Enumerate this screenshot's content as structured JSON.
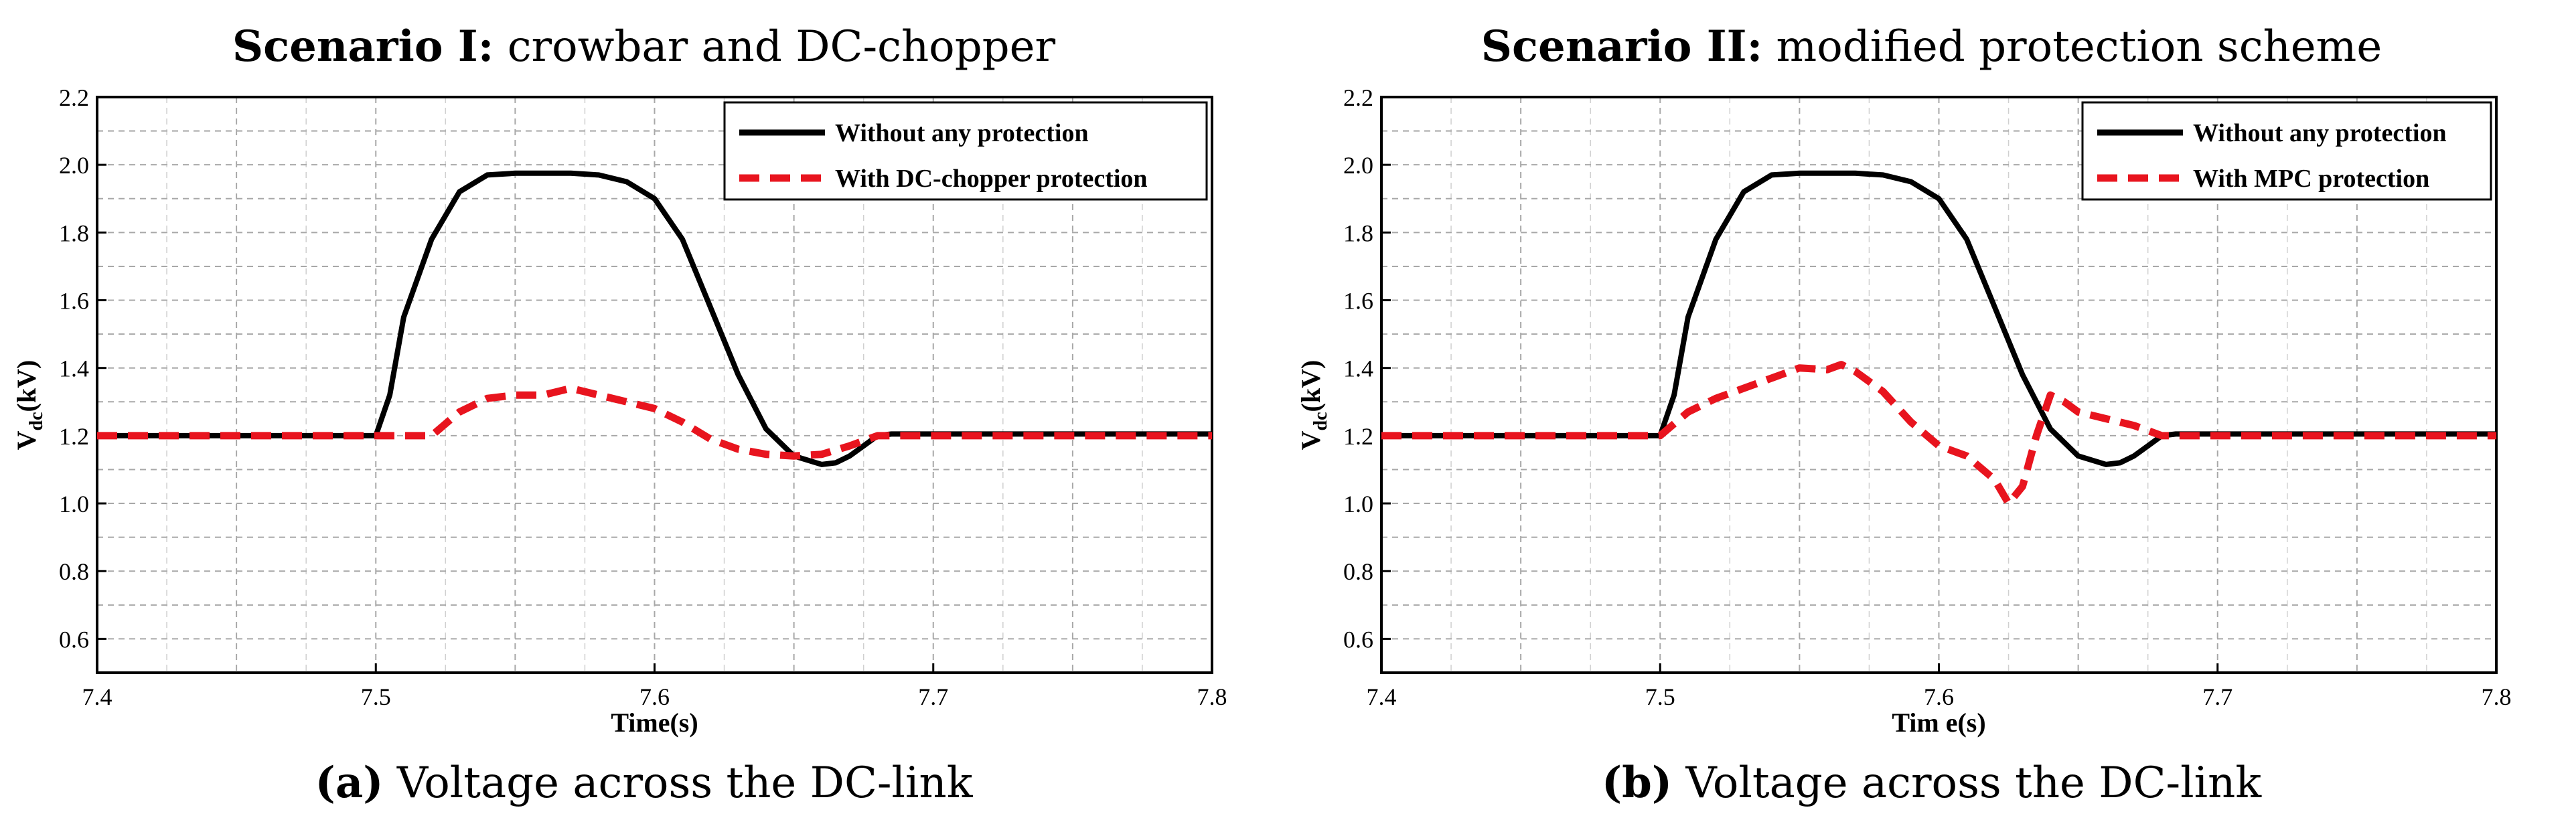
{
  "chart_data": [
    {
      "type": "line",
      "panel_title_bold": "Scenario I:",
      "panel_title_rest": " crowbar and DC-chopper",
      "caption_bold": "(a)",
      "caption_rest": " Voltage across the DC-link",
      "xlabel": "Time(s)",
      "ylabel": "V",
      "ylabel_sub": "dc",
      "ylabel_unit": "(kV)",
      "xlim": [
        7.4,
        7.8
      ],
      "ylim": [
        0.5,
        2.2
      ],
      "x_ticks": [
        7.4,
        7.5,
        7.6,
        7.7,
        7.8
      ],
      "x_tick_labels": [
        "7.4",
        "7.5",
        "7.6",
        "7.7",
        "7.8"
      ],
      "y_ticks": [
        0.6,
        0.8,
        1.0,
        1.2,
        1.4,
        1.6,
        1.8,
        2.0,
        2.2
      ],
      "y_tick_labels": [
        "0.6",
        "0.8",
        "1.0",
        "1.2",
        "1.4",
        "1.6",
        "1.8",
        "2.0",
        "2.2"
      ],
      "grid": true,
      "legend_position": "top-right",
      "series": [
        {
          "name": "Without any protection",
          "color": "#000000",
          "style": "solid",
          "x": [
            7.4,
            7.5,
            7.505,
            7.51,
            7.52,
            7.53,
            7.54,
            7.55,
            7.56,
            7.57,
            7.58,
            7.59,
            7.6,
            7.61,
            7.62,
            7.63,
            7.64,
            7.65,
            7.66,
            7.665,
            7.67,
            7.675,
            7.68,
            7.685,
            7.8
          ],
          "y": [
            1.2,
            1.2,
            1.32,
            1.55,
            1.78,
            1.92,
            1.97,
            1.975,
            1.975,
            1.975,
            1.97,
            1.95,
            1.9,
            1.78,
            1.58,
            1.38,
            1.22,
            1.14,
            1.115,
            1.12,
            1.14,
            1.17,
            1.2,
            1.205,
            1.205
          ]
        },
        {
          "name": "With DC-chopper protection",
          "color": "#e8141e",
          "style": "dashed",
          "x": [
            7.4,
            7.5,
            7.52,
            7.53,
            7.54,
            7.55,
            7.56,
            7.57,
            7.58,
            7.59,
            7.6,
            7.61,
            7.62,
            7.63,
            7.64,
            7.65,
            7.66,
            7.67,
            7.68,
            7.8
          ],
          "y": [
            1.2,
            1.2,
            1.2,
            1.27,
            1.31,
            1.32,
            1.32,
            1.34,
            1.32,
            1.3,
            1.28,
            1.24,
            1.19,
            1.16,
            1.145,
            1.14,
            1.145,
            1.17,
            1.2,
            1.2
          ]
        }
      ]
    },
    {
      "type": "line",
      "panel_title_bold": "Scenario II:",
      "panel_title_rest": " modified protection scheme",
      "caption_bold": "(b)",
      "caption_rest": " Voltage across the DC-link",
      "xlabel": "Tim e(s)",
      "ylabel": "V",
      "ylabel_sub": "dc",
      "ylabel_unit": "(kV)",
      "xlim": [
        7.4,
        7.8
      ],
      "ylim": [
        0.5,
        2.2
      ],
      "x_ticks": [
        7.4,
        7.5,
        7.6,
        7.7,
        7.8
      ],
      "x_tick_labels": [
        "7.4",
        "7.5",
        "7.6",
        "7.7",
        "7.8"
      ],
      "y_ticks": [
        0.6,
        0.8,
        1.0,
        1.2,
        1.4,
        1.6,
        1.8,
        2.0,
        2.2
      ],
      "y_tick_labels": [
        "0.6",
        "0.8",
        "1.0",
        "1.2",
        "1.4",
        "1.6",
        "1.8",
        "2.0",
        "2.2"
      ],
      "grid": true,
      "legend_position": "top-right",
      "series": [
        {
          "name": "Without any protection",
          "color": "#000000",
          "style": "solid",
          "x": [
            7.4,
            7.5,
            7.505,
            7.51,
            7.52,
            7.53,
            7.54,
            7.55,
            7.56,
            7.57,
            7.58,
            7.59,
            7.6,
            7.61,
            7.62,
            7.63,
            7.64,
            7.65,
            7.66,
            7.665,
            7.67,
            7.675,
            7.68,
            7.685,
            7.8
          ],
          "y": [
            1.2,
            1.2,
            1.32,
            1.55,
            1.78,
            1.92,
            1.97,
            1.975,
            1.975,
            1.975,
            1.97,
            1.95,
            1.9,
            1.78,
            1.58,
            1.38,
            1.22,
            1.14,
            1.115,
            1.12,
            1.14,
            1.17,
            1.2,
            1.205,
            1.205
          ]
        },
        {
          "name": "With MPC protection",
          "color": "#e8141e",
          "style": "dashed",
          "x": [
            7.4,
            7.5,
            7.51,
            7.52,
            7.53,
            7.54,
            7.55,
            7.56,
            7.565,
            7.57,
            7.58,
            7.59,
            7.6,
            7.61,
            7.62,
            7.625,
            7.63,
            7.635,
            7.64,
            7.645,
            7.65,
            7.66,
            7.67,
            7.68,
            7.8
          ],
          "y": [
            1.2,
            1.2,
            1.27,
            1.31,
            1.34,
            1.37,
            1.4,
            1.395,
            1.41,
            1.39,
            1.33,
            1.24,
            1.17,
            1.14,
            1.07,
            1.0,
            1.05,
            1.2,
            1.32,
            1.3,
            1.27,
            1.25,
            1.23,
            1.2,
            1.2
          ]
        }
      ]
    }
  ]
}
